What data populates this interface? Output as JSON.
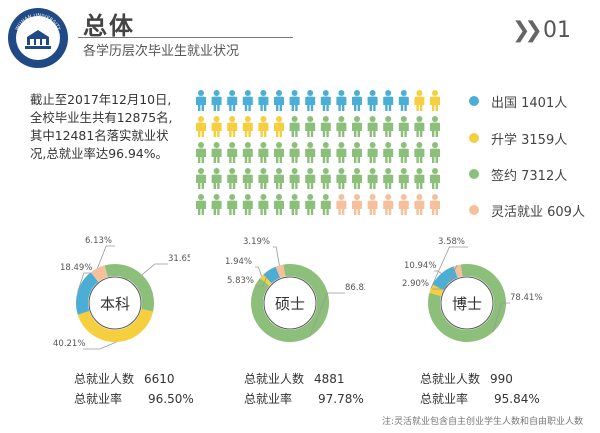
{
  "header": {
    "title": "总体",
    "subtitle": "各学历层次毕业生就业状况",
    "page_number": "01",
    "logo_text": "WUHAN UNIVERSITY"
  },
  "intro": {
    "text": "截止至2017年12月10日,全校毕业生共有12875名,其中12481名落实就业状况,总就业率达96.94%。"
  },
  "colors": {
    "abroad": "#4aaed5",
    "further": "#f5cf3e",
    "signed": "#8cc07a",
    "flexible": "#f5c09c"
  },
  "pictogram": {
    "counts": {
      "abroad": 14,
      "further": 8,
      "signed": 51,
      "flexible": 7
    }
  },
  "legend": [
    {
      "key": "abroad",
      "label": "出国 1401人"
    },
    {
      "key": "further",
      "label": "升学 3159人"
    },
    {
      "key": "signed",
      "label": "签约 7312人"
    },
    {
      "key": "flexible",
      "label": "灵活就业 609人"
    }
  ],
  "chart_data": [
    {
      "type": "pie",
      "title": "本科",
      "categories": [
        "签约",
        "升学",
        "出国",
        "灵活就业"
      ],
      "values": [
        31.65,
        40.21,
        18.49,
        6.13
      ],
      "labels": [
        "31.65%",
        "40.21%",
        "18.49%",
        "6.13%"
      ]
    },
    {
      "type": "pie",
      "title": "硕士",
      "categories": [
        "签约",
        "升学",
        "出国",
        "灵活就业"
      ],
      "values": [
        86.82,
        1.94,
        5.83,
        3.19
      ],
      "labels": [
        "86.82%",
        "1.94%",
        "5.83%",
        "3.19%"
      ]
    },
    {
      "type": "pie",
      "title": "博士",
      "categories": [
        "签约",
        "升学",
        "出国",
        "灵活就业"
      ],
      "values": [
        78.41,
        3.58,
        10.94,
        2.9
      ],
      "labels": [
        "78.41%",
        "3.58%",
        "10.94%",
        "2.90%"
      ]
    }
  ],
  "stats": [
    {
      "employed_label": "总就业人数",
      "employed_value": "6610",
      "rate_label": "总就业率",
      "rate_value": "96.50%"
    },
    {
      "employed_label": "总就业人数",
      "employed_value": "4881",
      "rate_label": "总就业率",
      "rate_value": "97.78%"
    },
    {
      "employed_label": "总就业人数",
      "employed_value": "990",
      "rate_label": "总就业率",
      "rate_value": "95.84%"
    }
  ],
  "note": "注:灵活就业包含自主创业学生人数和自由职业人数"
}
